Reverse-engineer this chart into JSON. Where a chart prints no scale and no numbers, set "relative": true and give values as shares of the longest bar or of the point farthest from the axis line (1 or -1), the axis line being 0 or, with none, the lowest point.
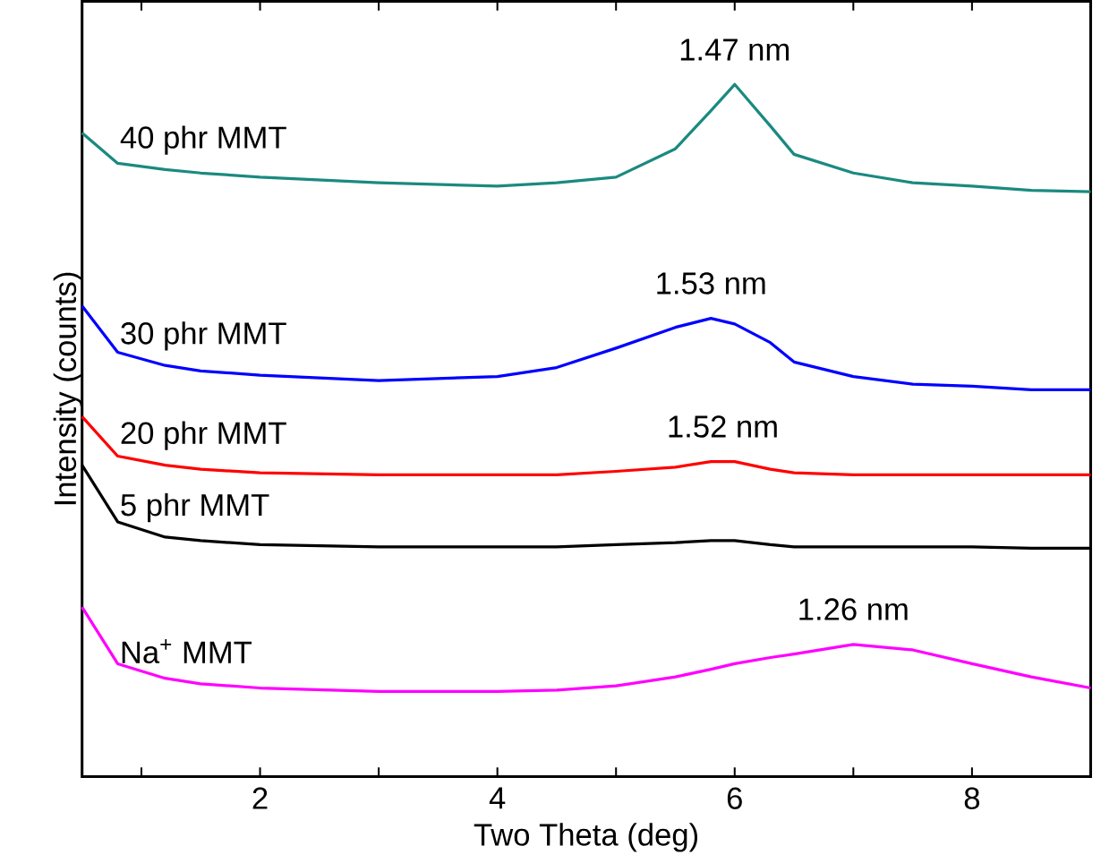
{
  "chart_data": {
    "type": "line",
    "relative": true,
    "xlabel": "Two Theta (deg)",
    "ylabel": "Intensity (counts)",
    "xlim": [
      0.5,
      9
    ],
    "xticks": [
      {
        "value": 1,
        "label": null
      },
      2,
      {
        "value": 3,
        "label": null
      },
      4,
      {
        "value": 5,
        "label": null
      },
      6,
      {
        "value": 7,
        "label": null
      },
      8,
      {
        "value": 9,
        "label": null
      }
    ],
    "tick_labels": "x",
    "grid": false,
    "legend": false,
    "marker": "none",
    "line_style": "solid",
    "x": [
      0.5,
      0.8,
      1.2,
      1.5,
      2,
      3,
      4,
      4.5,
      5,
      5.5,
      5.8,
      6,
      6.3,
      6.5,
      7,
      7.5,
      8,
      8.5,
      9
    ],
    "series": [
      {
        "name": "40 phr MMT",
        "color": "#1a8a80",
        "values": [
          0.93,
          0.886,
          0.877,
          0.872,
          0.866,
          0.858,
          0.853,
          0.858,
          0.866,
          0.907,
          0.962,
          1.0,
          0.94,
          0.899,
          0.872,
          0.858,
          0.853,
          0.847,
          0.845
        ]
      },
      {
        "name": "30 phr MMT",
        "color": "#0000ff",
        "values": [
          0.68,
          0.613,
          0.594,
          0.586,
          0.58,
          0.572,
          0.578,
          0.591,
          0.619,
          0.649,
          0.662,
          0.654,
          0.627,
          0.599,
          0.578,
          0.567,
          0.564,
          0.559,
          0.559
        ]
      },
      {
        "name": "20 phr MMT",
        "color": "#ff0000",
        "values": [
          0.52,
          0.463,
          0.45,
          0.444,
          0.439,
          0.436,
          0.436,
          0.436,
          0.441,
          0.447,
          0.455,
          0.455,
          0.444,
          0.439,
          0.436,
          0.436,
          0.436,
          0.436,
          0.436
        ]
      },
      {
        "name": "5 phr MMT",
        "color": "#000000",
        "values": [
          0.45,
          0.368,
          0.346,
          0.341,
          0.335,
          0.332,
          0.332,
          0.332,
          0.335,
          0.338,
          0.341,
          0.341,
          0.335,
          0.332,
          0.332,
          0.332,
          0.332,
          0.33,
          0.33
        ]
      },
      {
        "name": "Na$^{+}$ MMT",
        "color": "#ff00ff",
        "values": [
          0.245,
          0.163,
          0.142,
          0.134,
          0.128,
          0.123,
          0.123,
          0.125,
          0.131,
          0.144,
          0.155,
          0.163,
          0.172,
          0.177,
          0.191,
          0.183,
          0.163,
          0.144,
          0.128
        ]
      }
    ],
    "annotations": [
      {
        "text": "1.47 nm",
        "x": 6,
        "y": 1.0
      },
      {
        "text": "1.53 nm",
        "x": 5.8,
        "y": 0.662
      },
      {
        "text": "1.52 nm",
        "x": 5.9,
        "y": 0.455
      },
      {
        "text": "1.26 nm",
        "x": 7,
        "y": 0.191
      }
    ]
  }
}
